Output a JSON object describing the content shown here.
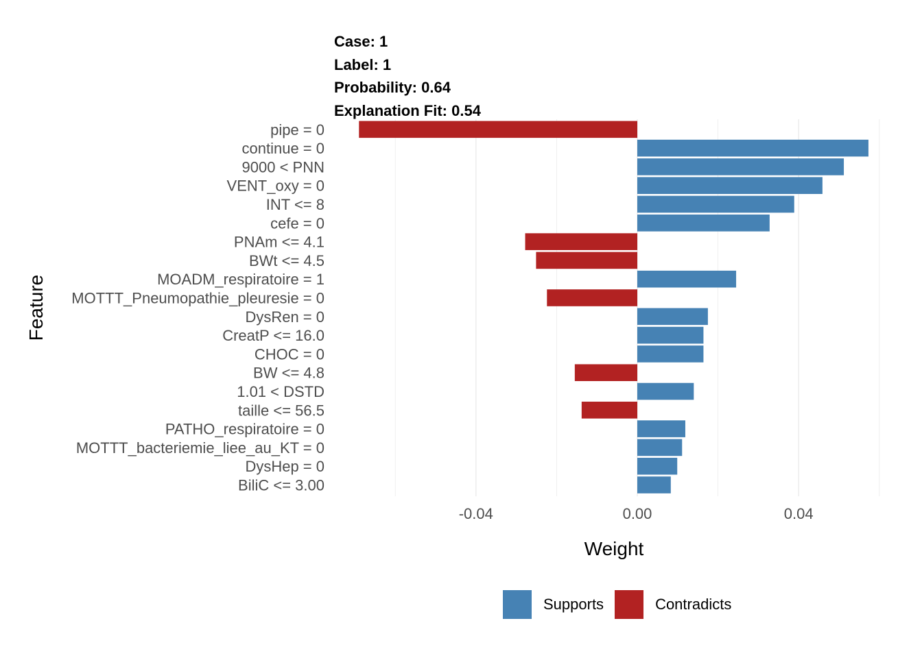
{
  "header": {
    "case": "Case: 1",
    "label": "Label: 1",
    "probability": "Probability: 0.64",
    "fit": "Explanation Fit: 0.54"
  },
  "legend": {
    "supports_label": "Supports",
    "contradicts_label": "Contradicts"
  },
  "colors": {
    "supports": "#4682B4",
    "contradicts": "#B22222",
    "grid": "#EBEBEB"
  },
  "chart_data": {
    "type": "bar",
    "orientation": "horizontal",
    "xlabel": "Weight",
    "ylabel": "Feature",
    "xlim": [
      -0.069,
      0.06
    ],
    "x_ticks": [
      -0.04,
      0.0,
      0.04
    ],
    "x_tick_labels": [
      "-0.04",
      "0.00",
      "0.04"
    ],
    "grid": true,
    "legend_position": "bottom",
    "categories": [
      "pipe = 0",
      "continue = 0",
      "9000 < PNN",
      "VENT_oxy = 0",
      "INT <= 8",
      "cefe = 0",
      "PNAm <= 4.1",
      "BWt <= 4.5",
      "MOADM_respiratoire = 1",
      "MOTTT_Pneumopathie_pleuresie = 0",
      "DysRen = 0",
      "CreatP <= 16.0",
      "CHOC = 0",
      "BW <= 4.8",
      "1.01 < DSTD",
      "taille <= 56.5",
      "PATHO_respiratoire = 0",
      "MOTTT_bacteriemie_liee_au_KT = 0",
      "DysHep = 0",
      "BiliC <= 3.00"
    ],
    "values": [
      -0.069,
      0.0573,
      0.0512,
      0.0459,
      0.0389,
      0.0328,
      -0.0278,
      -0.0251,
      0.0245,
      -0.0224,
      0.0175,
      0.0164,
      0.0164,
      -0.0155,
      0.014,
      -0.0138,
      0.0119,
      0.0111,
      0.0099,
      0.0083
    ]
  }
}
